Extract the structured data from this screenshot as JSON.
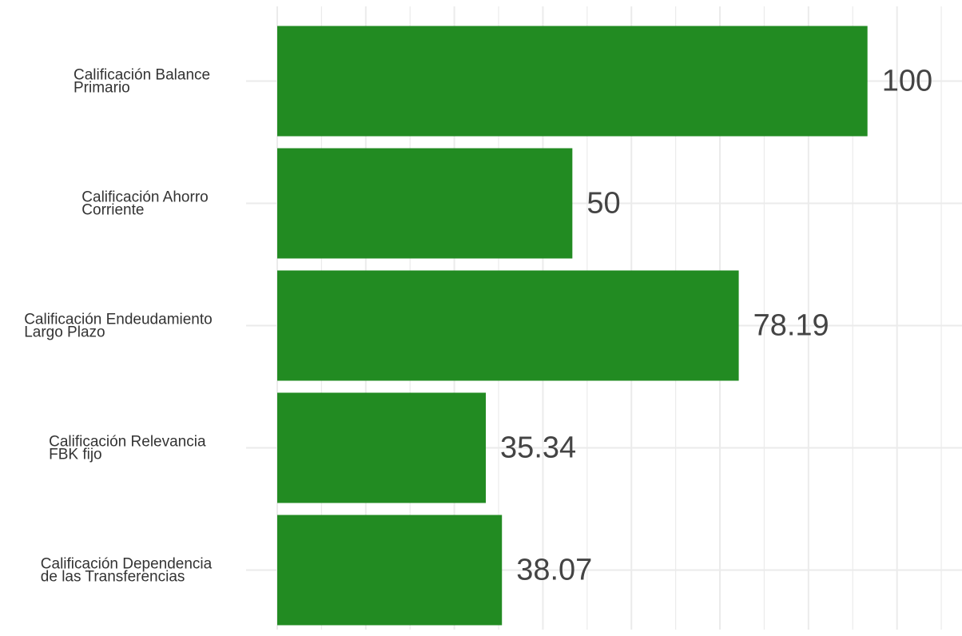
{
  "colors": {
    "bar": "#228B22",
    "grid": "#EBEBEB",
    "text": "#333333",
    "value_text": "#444444",
    "background": "#FFFFFF"
  },
  "chart_data": {
    "type": "bar",
    "orientation": "horizontal",
    "categories": [
      [
        "Calificación Balance",
        "Primario"
      ],
      [
        "Calificación Ahorro",
        "Corriente"
      ],
      [
        "Calificación Endeudamiento",
        "Largo Plazo"
      ],
      [
        "Calificación Relevancia",
        "FBK fijo"
      ],
      [
        "Calificación Dependencia",
        "de las Transferencias"
      ]
    ],
    "values": [
      100,
      50,
      78.19,
      35.34,
      38.07
    ],
    "value_labels": [
      "100",
      "50",
      "78.19",
      "35.34",
      "38.07"
    ],
    "title": "",
    "xlabel": "",
    "ylabel": "",
    "xlim": [
      0,
      115
    ],
    "grid": true,
    "x_tick_labels_shown": false
  }
}
